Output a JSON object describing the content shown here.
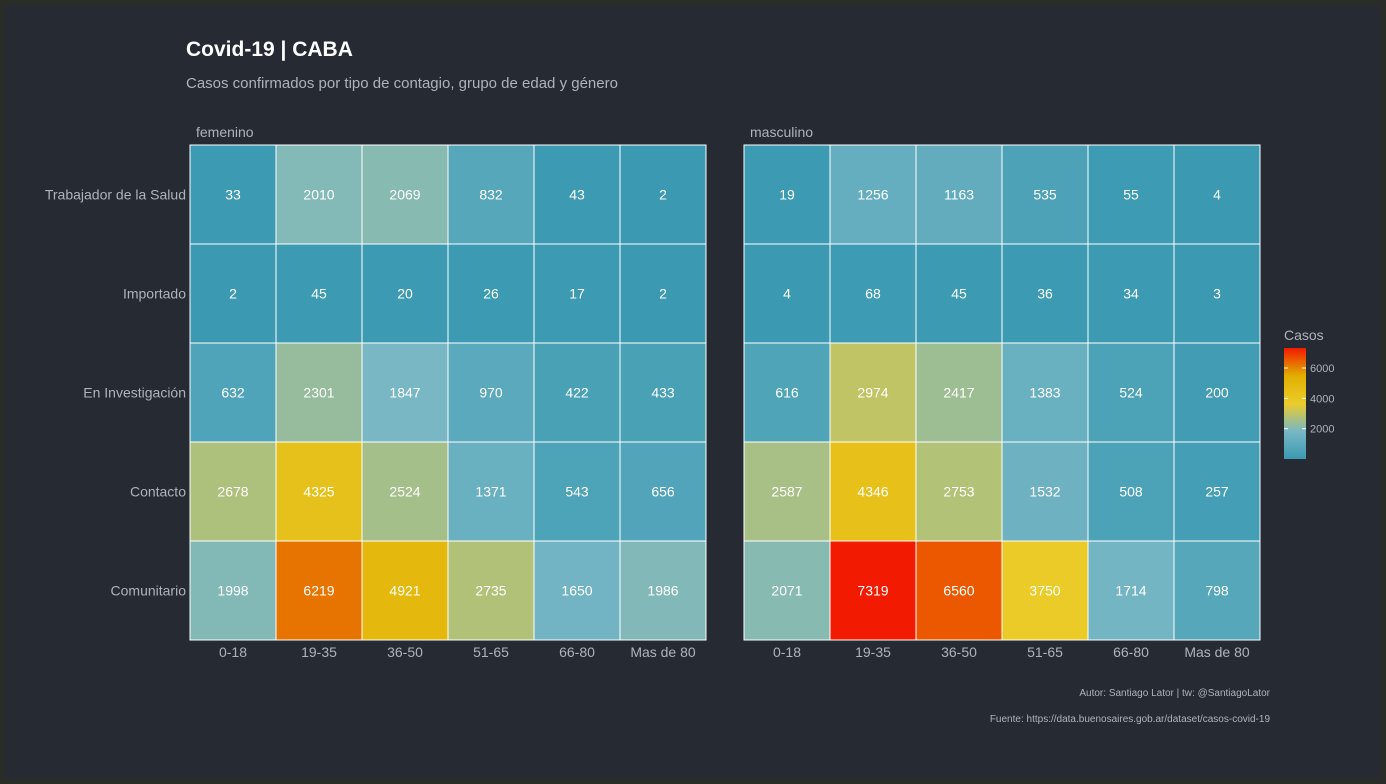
{
  "chart_data": {
    "type": "heatmap",
    "title": "Covid-19 | CABA",
    "subtitle": "Casos confirmados por tipo de contagio, grupo de edad y género",
    "caption_author": "Autor: Santiago Lator | tw: @SantiagoLator",
    "caption_source": "Fuente: https://data.buenosaires.gob.ar/dataset/casos-covid-19",
    "x_categories": [
      "0-18",
      "19-35",
      "36-50",
      "51-65",
      "66-80",
      "Mas de 80"
    ],
    "y_categories": [
      "Trabajador de la Salud",
      "Importado",
      "En Investigación",
      "Contacto",
      "Comunitario"
    ],
    "facets": [
      {
        "name": "femenino",
        "values": [
          [
            33,
            2010,
            2069,
            832,
            43,
            2
          ],
          [
            2,
            45,
            20,
            26,
            17,
            2
          ],
          [
            632,
            2301,
            1847,
            970,
            422,
            433
          ],
          [
            2678,
            4325,
            2524,
            1371,
            543,
            656
          ],
          [
            1998,
            6219,
            4921,
            2735,
            1650,
            1986
          ]
        ]
      },
      {
        "name": "masculino",
        "values": [
          [
            19,
            1256,
            1163,
            535,
            55,
            4
          ],
          [
            4,
            68,
            45,
            36,
            34,
            3
          ],
          [
            616,
            2974,
            2417,
            1383,
            524,
            200
          ],
          [
            2587,
            4346,
            2753,
            1532,
            508,
            257
          ],
          [
            2071,
            7319,
            6560,
            3750,
            1714,
            798
          ]
        ]
      }
    ],
    "legend": {
      "title": "Casos",
      "ticks": [
        2000,
        4000,
        6000
      ],
      "range": [
        2,
        7319
      ],
      "colors": [
        "#3b9ab2",
        "#78b7c5",
        "#ebcc2a",
        "#e1af00",
        "#f21a00"
      ]
    }
  }
}
